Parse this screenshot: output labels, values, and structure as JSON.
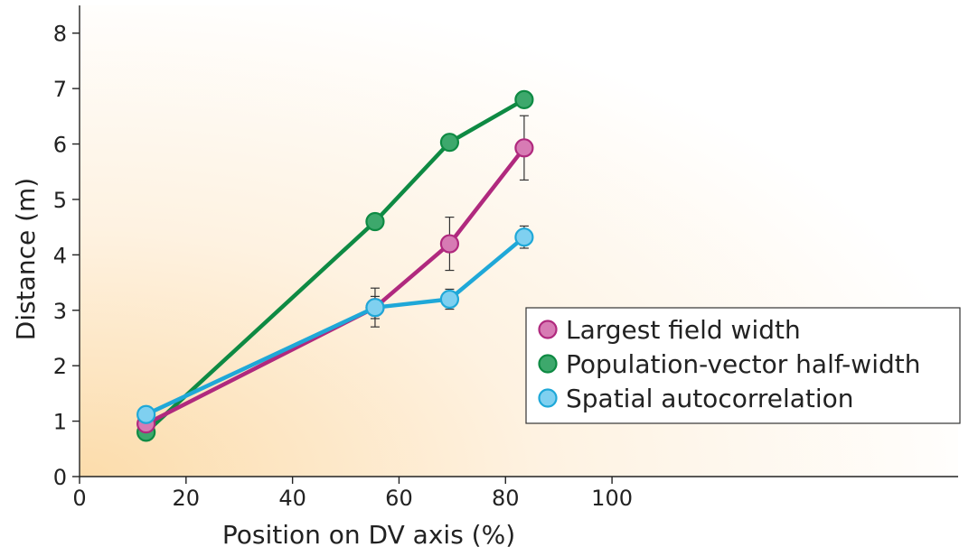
{
  "chart_data": {
    "type": "line",
    "xlabel": "Position on DV axis (%)",
    "ylabel": "Distance (m)",
    "xlim": [
      0,
      165
    ],
    "ylim": [
      0,
      8.5
    ],
    "xticks": [
      0,
      20,
      40,
      60,
      80,
      100
    ],
    "yticks": [
      0,
      1,
      2,
      3,
      4,
      5,
      6,
      7,
      8
    ],
    "grid": false,
    "legend_position": "right",
    "series": [
      {
        "name": "Largest field width",
        "color": "#b0297e",
        "marker_color": "#d77bb4",
        "points": [
          {
            "x": 12.5,
            "y": 0.95
          },
          {
            "x": 55.5,
            "y": 3.05,
            "err": 0.35
          },
          {
            "x": 69.5,
            "y": 4.2,
            "err": 0.48
          },
          {
            "x": 83.5,
            "y": 5.93,
            "err": 0.58
          }
        ]
      },
      {
        "name": "Population-vector half-width",
        "color": "#0e8a43",
        "marker_color": "#3da86c",
        "points": [
          {
            "x": 12.5,
            "y": 0.8
          },
          {
            "x": 55.5,
            "y": 4.6
          },
          {
            "x": 69.5,
            "y": 6.03
          },
          {
            "x": 83.5,
            "y": 6.8
          }
        ]
      },
      {
        "name": "Spatial autocorrelation",
        "color": "#1fa8d8",
        "marker_color": "#7fd0f0",
        "points": [
          {
            "x": 12.5,
            "y": 1.12
          },
          {
            "x": 55.5,
            "y": 3.05,
            "err": 0.2
          },
          {
            "x": 69.5,
            "y": 3.2,
            "err": 0.18
          },
          {
            "x": 83.5,
            "y": 4.32,
            "err": 0.2
          }
        ]
      }
    ]
  }
}
